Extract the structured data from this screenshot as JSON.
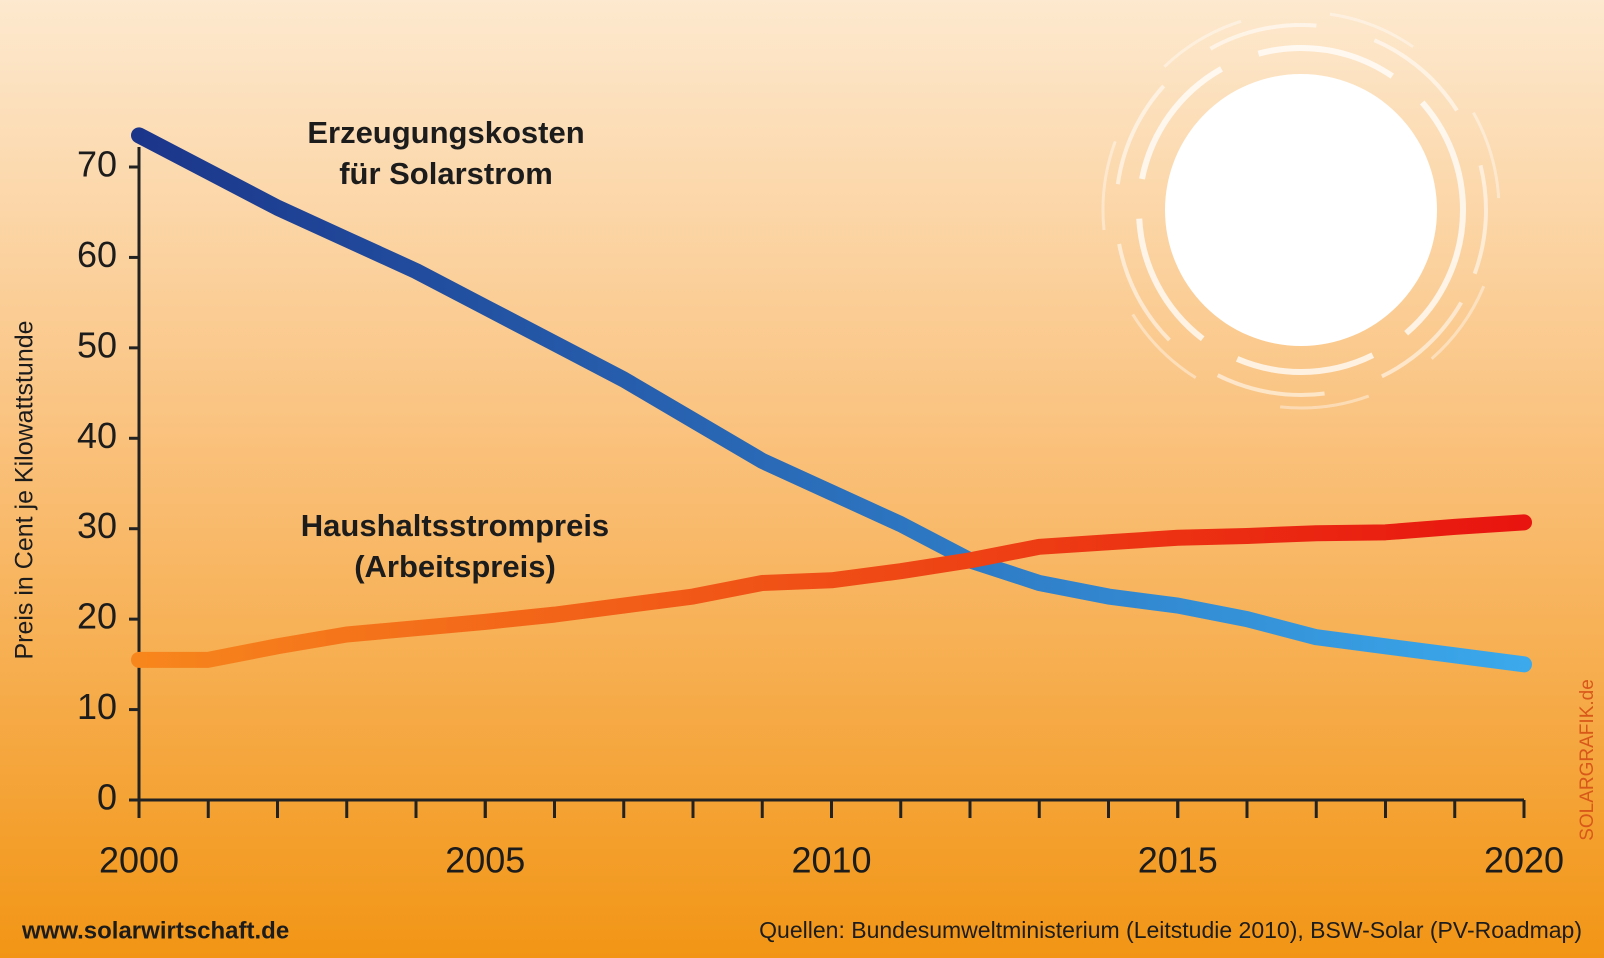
{
  "chart_data": {
    "type": "line",
    "y_label": "Preis in Cent je Kilowattstunde",
    "annotations": [
      [
        "Erzeugungskosten",
        "für Solarstrom"
      ],
      [
        "Haushaltsstrompreis",
        "(Arbeitspreis)"
      ]
    ],
    "x": [
      2000,
      2001,
      2002,
      2003,
      2004,
      2005,
      2006,
      2007,
      2008,
      2009,
      2010,
      2011,
      2012,
      2013,
      2014,
      2015,
      2016,
      2017,
      2018,
      2019,
      2020
    ],
    "series": [
      {
        "color": [
          "#1b358a",
          "#3ba9ec"
        ],
        "values": [
          73.5,
          69.5,
          65.5,
          62,
          58.5,
          54.5,
          50.5,
          46.5,
          42,
          37.5,
          34,
          30.5,
          26.5,
          24,
          22.5,
          21.5,
          20,
          18,
          17,
          16,
          15
        ]
      },
      {
        "color": [
          "#f7861c",
          "#e8140f"
        ],
        "values": [
          15.5,
          15.5,
          17,
          18.3,
          19,
          19.7,
          20.5,
          21.5,
          22.5,
          24,
          24.3,
          25.3,
          26.5,
          28,
          28.5,
          29,
          29.2,
          29.5,
          29.6,
          30.2,
          30.7
        ]
      }
    ],
    "xlim": [
      2000,
      2020
    ],
    "xticks": [
      2000,
      2005,
      2010,
      2015,
      2020
    ],
    "xticks_minor": [
      2000,
      2001,
      2002,
      2003,
      2004,
      2005,
      2006,
      2007,
      2008,
      2009,
      2010,
      2011,
      2012,
      2013,
      2014,
      2015,
      2016,
      2017,
      2018,
      2019,
      2020
    ],
    "ylim": [
      0,
      70
    ],
    "yticks": [
      0,
      10,
      20,
      30,
      40,
      50,
      60,
      70
    ],
    "footer_left": "www.solarwirtschaft.de",
    "footer_right": "Quellen: Bundesumweltministerium (Leitstudie 2010), BSW-Solar (PV-Roadmap)",
    "credit": "SOLARGRAFIK.de"
  }
}
